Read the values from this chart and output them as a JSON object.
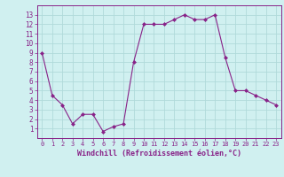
{
  "x": [
    0,
    1,
    2,
    3,
    4,
    5,
    6,
    7,
    8,
    9,
    10,
    11,
    12,
    13,
    14,
    15,
    16,
    17,
    18,
    19,
    20,
    21,
    22,
    23
  ],
  "y": [
    9,
    4.5,
    3.5,
    1.5,
    2.5,
    2.5,
    0.7,
    1.2,
    1.5,
    8,
    12,
    12,
    12,
    12.5,
    13,
    12.5,
    12.5,
    13,
    8.5,
    5,
    5,
    4.5,
    4,
    3.5
  ],
  "line_color": "#882288",
  "marker": "D",
  "marker_size": 2.0,
  "bg_color": "#d0f0f0",
  "grid_color": "#b0dada",
  "xlabel": "Windchill (Refroidissement éolien,°C)",
  "xlabel_color": "#882288",
  "tick_color": "#882288",
  "ylim": [
    0,
    14
  ],
  "xlim": [
    -0.5,
    23.5
  ],
  "yticks": [
    1,
    2,
    3,
    4,
    5,
    6,
    7,
    8,
    9,
    10,
    11,
    12,
    13
  ],
  "xticks": [
    0,
    1,
    2,
    3,
    4,
    5,
    6,
    7,
    8,
    9,
    10,
    11,
    12,
    13,
    14,
    15,
    16,
    17,
    18,
    19,
    20,
    21,
    22,
    23
  ]
}
